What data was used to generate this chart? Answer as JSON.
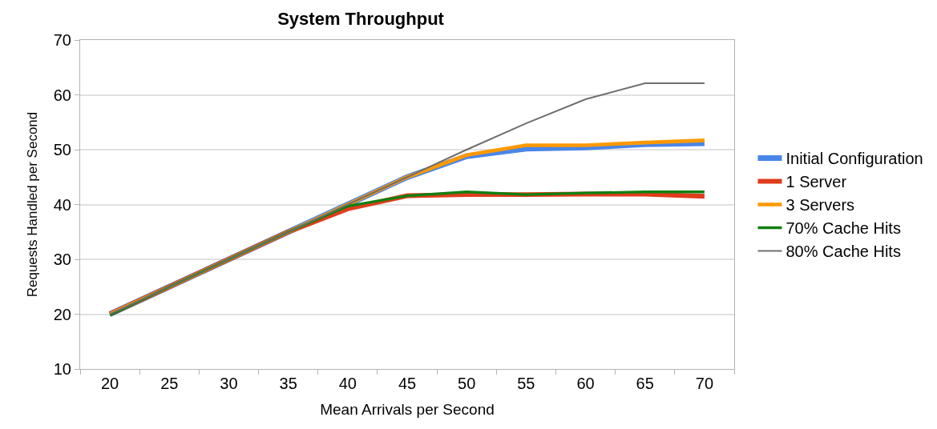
{
  "chart_data": {
    "type": "line",
    "title": "System Throughput",
    "xlabel": "Mean Arrivals per Second",
    "ylabel": "Requests Handled per Second",
    "categories": [
      "20",
      "25",
      "30",
      "35",
      "40",
      "45",
      "50",
      "55",
      "60",
      "65",
      "70"
    ],
    "ylim": [
      10,
      70
    ],
    "yticks": [
      10,
      20,
      30,
      40,
      50,
      60,
      70
    ],
    "grid": "y",
    "legend": "right",
    "marker": "none",
    "line_style": "solid",
    "series": [
      {
        "name": "Initial Configuration",
        "color": "#4a86e8",
        "values": [
          20,
          25,
          30,
          35,
          40,
          45,
          48.8,
          50.2,
          50.4,
          51.0,
          51.2
        ]
      },
      {
        "name": "1 Server",
        "color": "#e03c1c",
        "values": [
          20,
          25,
          30,
          35,
          39.2,
          41.6,
          41.8,
          41.8,
          41.9,
          41.9,
          41.5
        ]
      },
      {
        "name": "3 Servers",
        "color": "#ff9900",
        "values": [
          20,
          25,
          30,
          35,
          40,
          45,
          49.0,
          50.8,
          50.8,
          51.3,
          51.7
        ]
      },
      {
        "name": "70% Cache Hits",
        "color": "#108010",
        "values": [
          19.8,
          25,
          30,
          35,
          39.7,
          41.6,
          42.3,
          41.8,
          42.1,
          42.3,
          42.3
        ]
      },
      {
        "name": "80% Cache Hits",
        "color": "#6e6e6e",
        "values": [
          20,
          25,
          30,
          35,
          40,
          45,
          50,
          54.8,
          59.2,
          62.1,
          62.1
        ]
      }
    ]
  }
}
